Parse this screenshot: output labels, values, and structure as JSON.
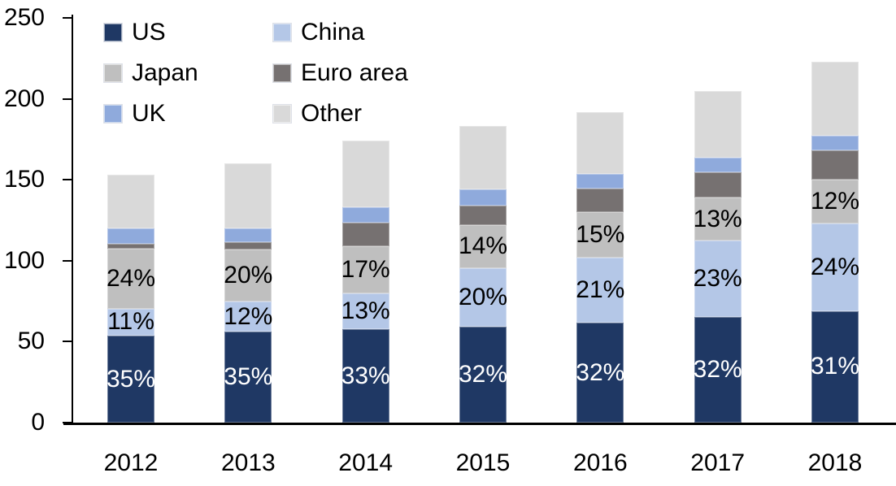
{
  "chart_data": {
    "type": "bar",
    "stacked": true,
    "title": "",
    "xlabel": "",
    "ylabel": "",
    "categories": [
      "2012",
      "2013",
      "2014",
      "2015",
      "2016",
      "2017",
      "2018"
    ],
    "series": [
      {
        "name": "US",
        "color": "#1f3864",
        "values": [
          53.5,
          56,
          57.5,
          59,
          61.5,
          65.5,
          69
        ],
        "labels": [
          "35%",
          "35%",
          "33%",
          "32%",
          "32%",
          "32%",
          "31%"
        ],
        "label_color": "#ffffff"
      },
      {
        "name": "China",
        "color": "#b4c7e7",
        "values": [
          17,
          19,
          22.5,
          36.5,
          40.5,
          47,
          54
        ],
        "labels": [
          "11%",
          "12%",
          "13%",
          "20%",
          "21%",
          "23%",
          "24%"
        ],
        "label_color": "#000000"
      },
      {
        "name": "Japan",
        "color": "#bfbfbf",
        "values": [
          37,
          32,
          29,
          26.5,
          28,
          26.5,
          27
        ],
        "labels": [
          "24%",
          "20%",
          "17%",
          "14%",
          "15%",
          "13%",
          "12%"
        ],
        "label_color": "#000000"
      },
      {
        "name": "Euro area",
        "color": "#767171",
        "values": [
          3,
          4.5,
          14.5,
          12,
          14.5,
          15.5,
          18
        ],
        "labels": null,
        "label_color": "#000000"
      },
      {
        "name": "UK",
        "color": "#8faadc",
        "values": [
          9.5,
          8.5,
          9.5,
          10,
          9,
          9,
          9
        ],
        "labels": null,
        "label_color": "#000000"
      },
      {
        "name": "Other",
        "color": "#d9d9d9",
        "values": [
          33,
          40,
          41,
          39,
          38.5,
          41.5,
          46
        ],
        "labels": null,
        "label_color": "#000000"
      }
    ],
    "totals": [
      153,
      160,
      174,
      183,
      192,
      205,
      223
    ],
    "ylim": [
      0,
      250
    ],
    "yticks": [
      0,
      50,
      100,
      150,
      200,
      250
    ],
    "grid": false,
    "legend_position": "top-left",
    "legend_columns": 2,
    "axis_color": "#000000"
  }
}
